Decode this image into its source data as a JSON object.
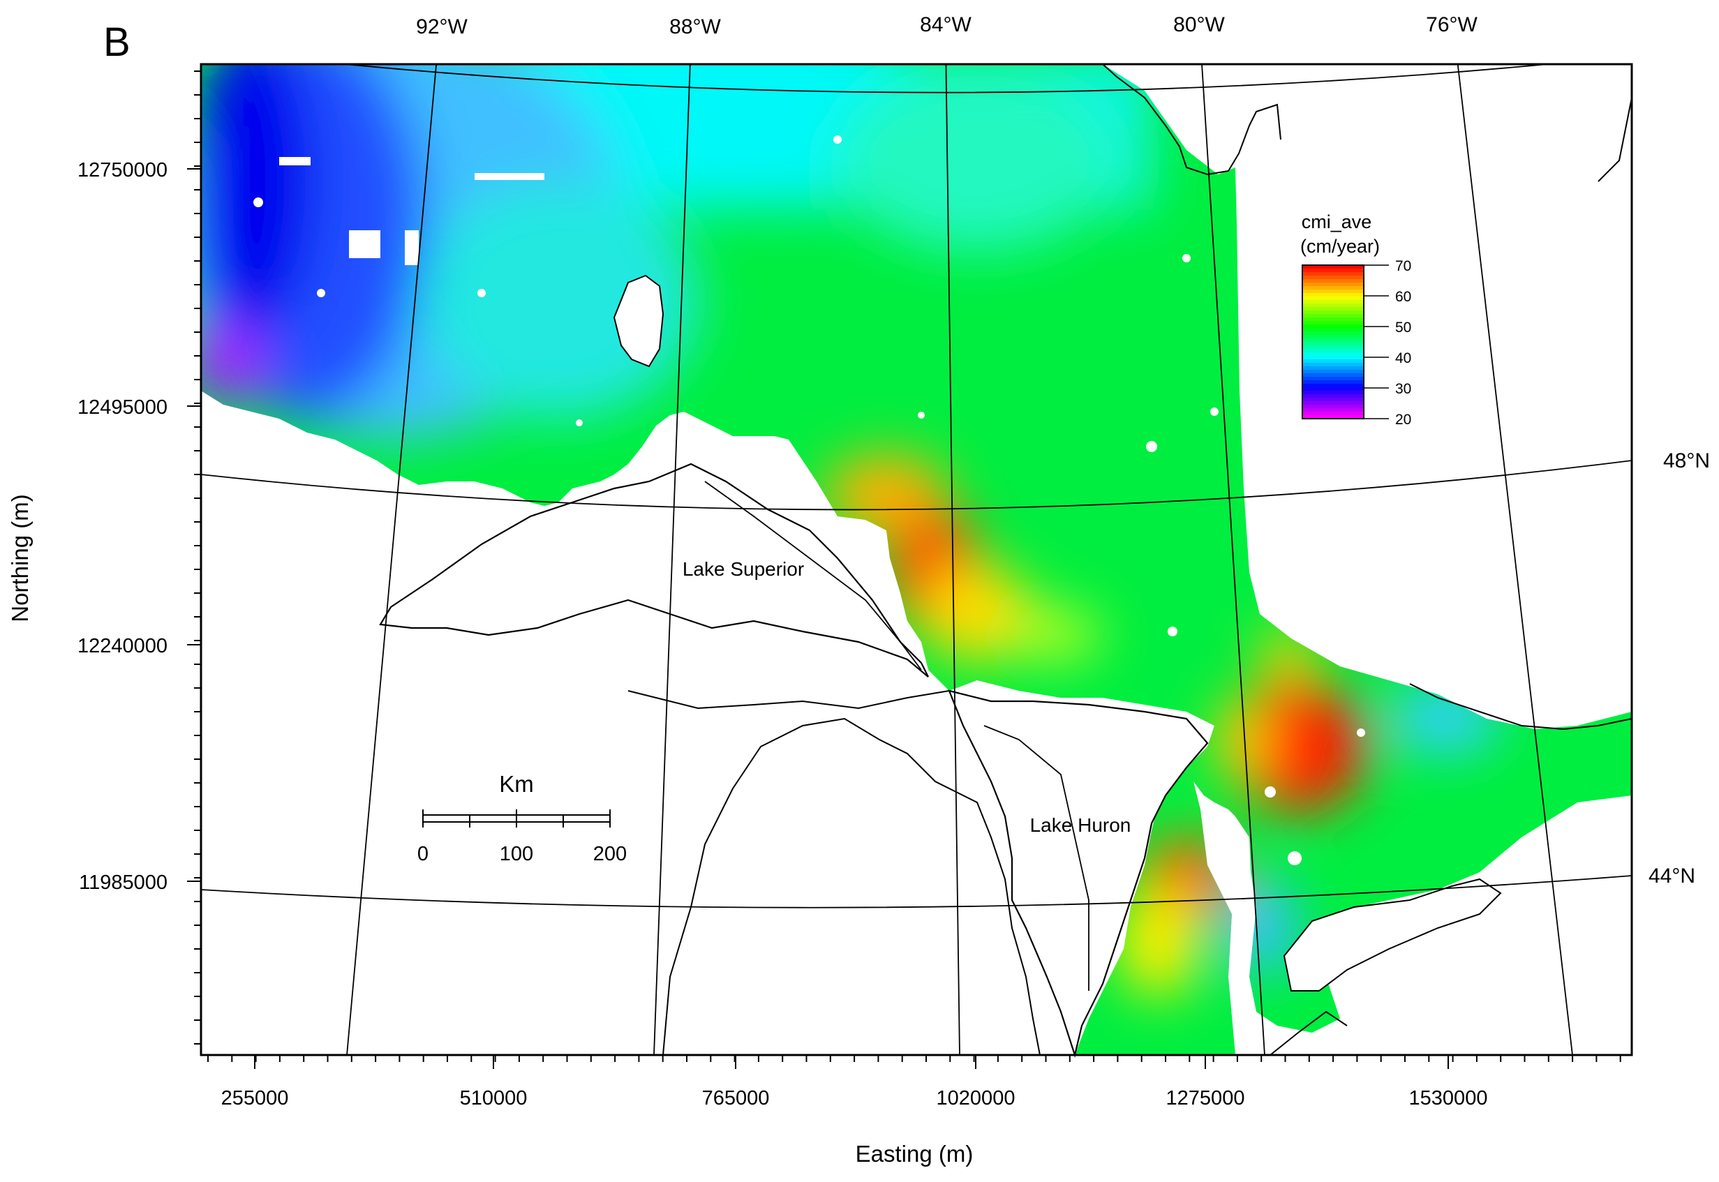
{
  "panel_label": "B",
  "axes": {
    "x_title": "Easting (m)",
    "y_title": "Northing (m)",
    "x_ticks": [
      "255000",
      "510000",
      "765000",
      "1020000",
      "1275000",
      "1530000"
    ],
    "y_ticks": [
      "12750000",
      "12495000",
      "12240000",
      "11985000"
    ]
  },
  "graticule": {
    "longitudes": [
      "92°W",
      "88°W",
      "84°W",
      "80°W",
      "76°W"
    ],
    "latitudes": [
      "48°N",
      "44°N"
    ]
  },
  "lakes": {
    "superior": "Lake Superior",
    "huron": "Lake Huron"
  },
  "legend": {
    "title_line1": "cmi_ave",
    "title_line2": "(cm/year)",
    "ticks": [
      "70",
      "60",
      "50",
      "40",
      "30",
      "20"
    ],
    "colors": [
      "#ff0000",
      "#ffff00",
      "#00ff00",
      "#00ffff",
      "#0000ff",
      "#ff00ff"
    ]
  },
  "scale_bar": {
    "title": "Km",
    "ticks": [
      "0",
      "100",
      "200"
    ]
  }
}
